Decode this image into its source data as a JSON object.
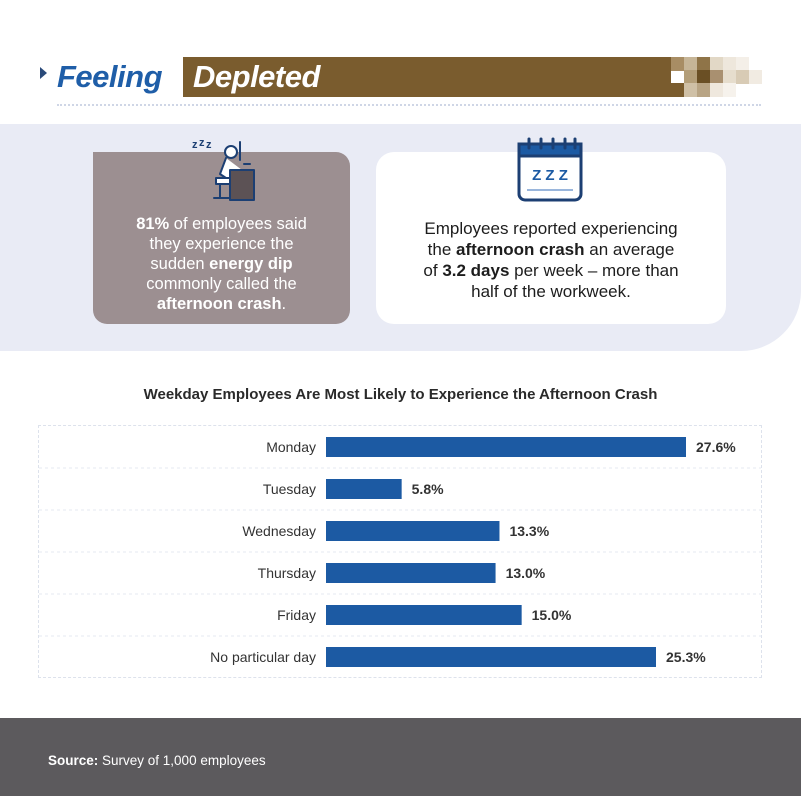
{
  "header": {
    "title_word_1": "Feeling",
    "title_word_2": "Depleted"
  },
  "stat_left": {
    "icon": "sleeping-worker-icon",
    "percent": "81%",
    "line_1": " of employees said",
    "line_2": "they experience the",
    "line_3_pre": "sudden ",
    "line_3_bold": "energy dip",
    "line_4": "commonly called the",
    "line_5_bold": "afternoon crash",
    "line_5_post": "."
  },
  "stat_right": {
    "icon": "calendar-zzz-icon",
    "calendar_text": "Z Z Z",
    "line_1": "Employees reported experiencing",
    "line_2_pre": "the ",
    "line_2_bold": "afternoon crash",
    "line_2_post": " an average",
    "line_3_pre": "of ",
    "line_3_bold": "3.2 days",
    "line_3_post": " per week – more than",
    "line_4": "half of the workweek."
  },
  "chart_data": {
    "type": "bar",
    "orientation": "horizontal",
    "title": "Weekday Employees Are Most Likely to Experience the Afternoon Crash",
    "categories": [
      "Monday",
      "Tuesday",
      "Wednesday",
      "Thursday",
      "Friday",
      "No particular day"
    ],
    "values": [
      27.6,
      5.8,
      13.3,
      13.0,
      15.0,
      25.3
    ],
    "value_labels": [
      "27.6%",
      "5.8%",
      "13.3%",
      "13.0%",
      "15.0%",
      "25.3%"
    ],
    "unit": "%",
    "xlabel": "",
    "ylabel": "",
    "grid": false,
    "bar_color": "#1c5aa3"
  },
  "footer": {
    "source_label": "Source:",
    "source_text": " Survey of 1,000 employees"
  },
  "colors": {
    "brand_blue": "#1f5ea8",
    "header_band": "#7a5c2e",
    "stats_band": "#e9ebf5",
    "card_left": "#9c8f91",
    "footer": "#5c5a5d"
  }
}
